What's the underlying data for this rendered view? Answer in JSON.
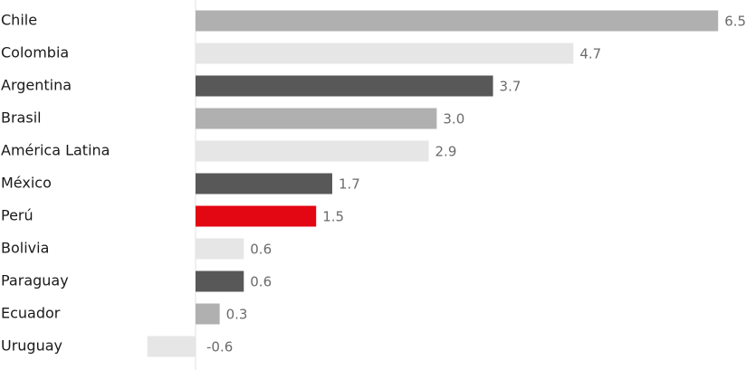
{
  "chart_data": {
    "type": "bar",
    "orientation": "horizontal",
    "categories": [
      "Chile",
      "Colombia",
      "Argentina",
      "Brasil",
      "América Latina",
      "México",
      "Perú",
      "Bolivia",
      "Paraguay",
      "Ecuador",
      "Uruguay"
    ],
    "values": [
      6.5,
      4.7,
      3.7,
      3.0,
      2.9,
      1.7,
      1.5,
      0.6,
      0.6,
      0.3,
      -0.6
    ],
    "value_labels": [
      "6.5",
      "4.7",
      "3.7",
      "3.0",
      "2.9",
      "1.7",
      "1.5",
      "0.6",
      "0.6",
      "0.3",
      "-0.6"
    ],
    "bar_colors": [
      "#b0b0b0",
      "#e6e6e6",
      "#585858",
      "#b0b0b0",
      "#e6e6e6",
      "#585858",
      "#e30613",
      "#e6e6e6",
      "#585858",
      "#b0b0b0",
      "#e6e6e6"
    ],
    "xlim": [
      -0.6,
      6.5
    ],
    "title": "",
    "xlabel": "",
    "ylabel": "",
    "grid": false,
    "legend": "none"
  },
  "colors": {
    "label_text": "#1a1a1a",
    "value_text": "#6b6b6b",
    "axis_line": "#e0e0e0",
    "highlight": "#e30613"
  }
}
